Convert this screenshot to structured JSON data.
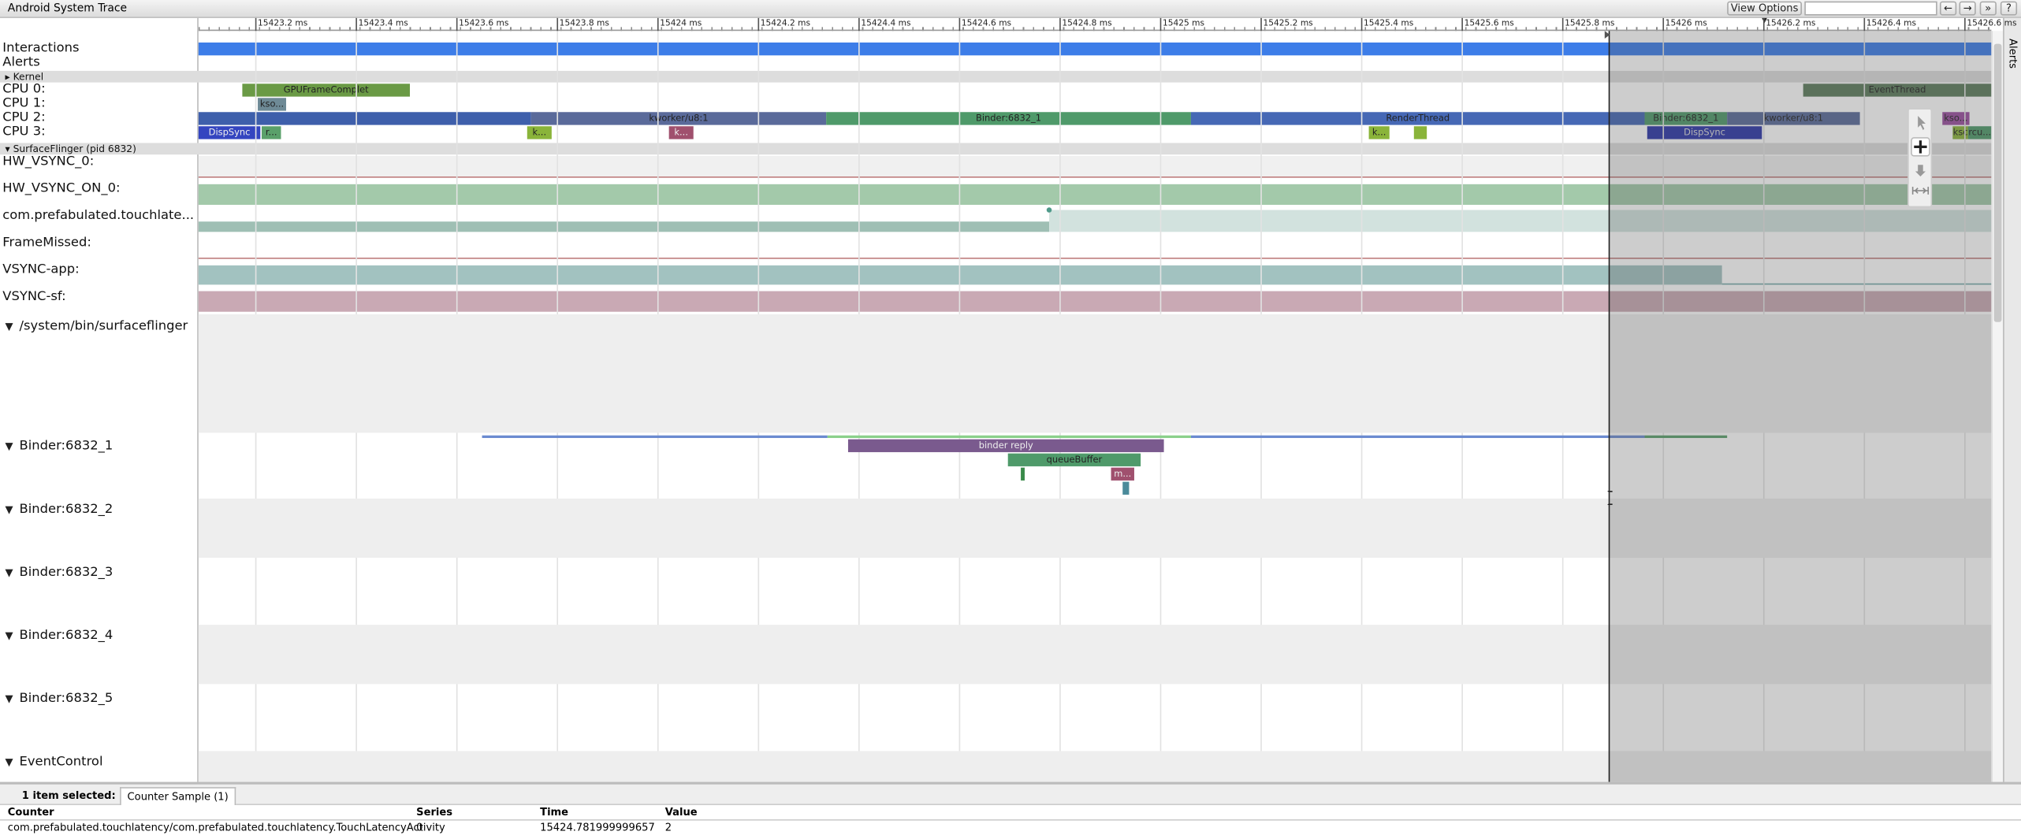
{
  "header": {
    "title": "Android System Trace",
    "view_options": "View Options ▾",
    "nav": [
      "←",
      "→",
      "»",
      "?"
    ]
  },
  "side_tab": "Alerts",
  "ruler": {
    "ticks": [
      "15423.2 ms",
      "15423.4 ms",
      "15423.6 ms",
      "15423.8 ms",
      "15424 ms",
      "15424.2 ms",
      "15424.4 ms",
      "15424.6 ms",
      "15424.8 ms",
      "15425 ms",
      "15425.2 ms",
      "15425.4 ms",
      "15425.6 ms",
      "15425.8 ms",
      "15426 ms",
      "15426.2 ms",
      "15426.4 ms",
      "15426.6 ms"
    ]
  },
  "tracks": {
    "interactions": "Interactions",
    "alerts": "Alerts"
  },
  "kernel": {
    "title": "Kernel",
    "cpus": [
      {
        "label": "CPU 0:",
        "slices": [
          "GPUFrameComplet",
          "EventThread"
        ]
      },
      {
        "label": "CPU 1:",
        "slices": [
          "kso..."
        ]
      },
      {
        "label": "CPU 2:",
        "slices": [
          "kworker/u8:1",
          "Binder:6832_1",
          "RenderThread",
          "Binder:6832_1",
          "kworker/u8:1",
          "kso..."
        ]
      },
      {
        "label": "CPU 3:",
        "slices": [
          "DispSync",
          "r...",
          "k...",
          "k...",
          "k...",
          "DispSync",
          "ksc",
          "rcu..."
        ]
      }
    ]
  },
  "surfaceflinger": {
    "title": "SurfaceFlinger (pid 6832)",
    "counters": [
      "HW_VSYNC_0:",
      "HW_VSYNC_ON_0:",
      "com.prefabulated.touchlate...",
      "FrameMissed:",
      "VSYNC-app:",
      "VSYNC-sf:"
    ],
    "threads": [
      "/system/bin/surfaceflinger",
      "Binder:6832_1",
      "Binder:6832_2",
      "Binder:6832_3",
      "Binder:6832_4",
      "Binder:6832_5",
      "EventControl"
    ],
    "binder_slices": [
      "binder reply",
      "queueBuffer",
      "m..."
    ]
  },
  "selection": {
    "summary": "1 item selected:",
    "tab": "Counter Sample (1)",
    "columns": [
      "Counter",
      "Series",
      "Time",
      "Value"
    ],
    "rows": [
      [
        "com.prefabulated.touchlatency/com.prefabulated.touchlatency.TouchLatencyActivity",
        "0",
        "15424.781999999657",
        "2"
      ]
    ]
  }
}
